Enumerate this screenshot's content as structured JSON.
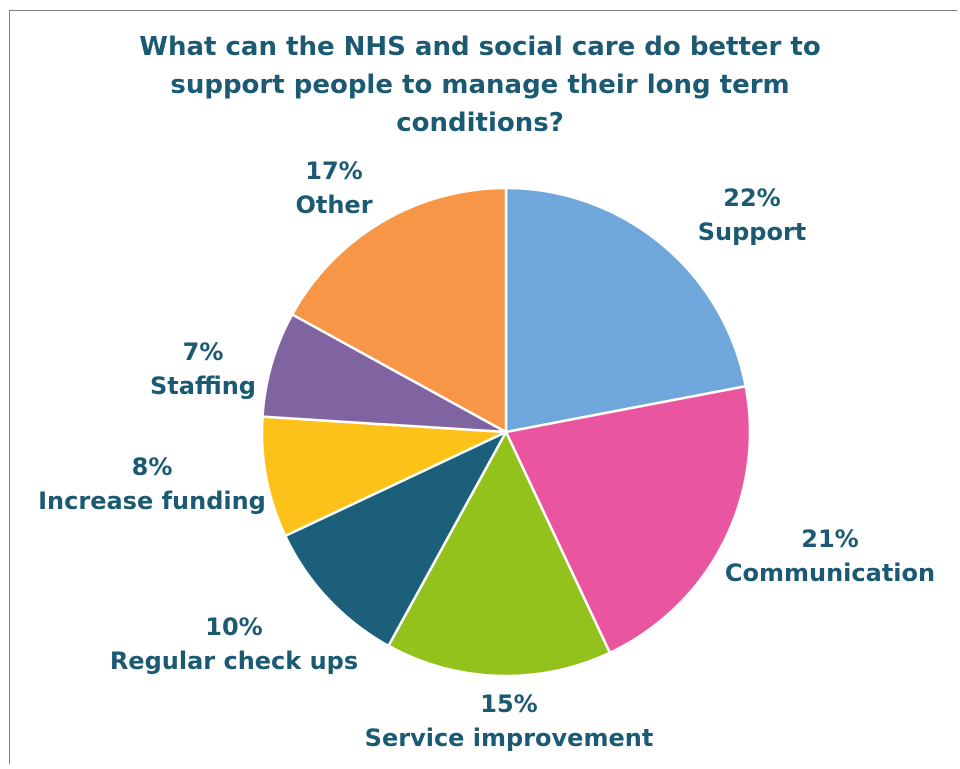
{
  "chart_data": {
    "type": "pie",
    "title_lines": [
      "What can the NHS and social care do better to",
      "support people to manage their long term",
      "conditions?"
    ],
    "slices": [
      {
        "label": "Support",
        "value": 22,
        "pct": "22%",
        "color": "#6fa6db"
      },
      {
        "label": "Communication",
        "value": 21,
        "pct": "21%",
        "color": "#e9559f"
      },
      {
        "label": "Service improvement",
        "value": 15,
        "pct": "15%",
        "color": "#93c21d"
      },
      {
        "label": "Regular check ups",
        "value": 10,
        "pct": "10%",
        "color": "#1b5f7a"
      },
      {
        "label": "Increase funding",
        "value": 8,
        "pct": "8%",
        "color": "#fdc21a"
      },
      {
        "label": "Staffing",
        "value": 7,
        "pct": "7%",
        "color": "#8064a2"
      },
      {
        "label": "Other",
        "value": 17,
        "pct": "17%",
        "color": "#f79646"
      }
    ]
  }
}
